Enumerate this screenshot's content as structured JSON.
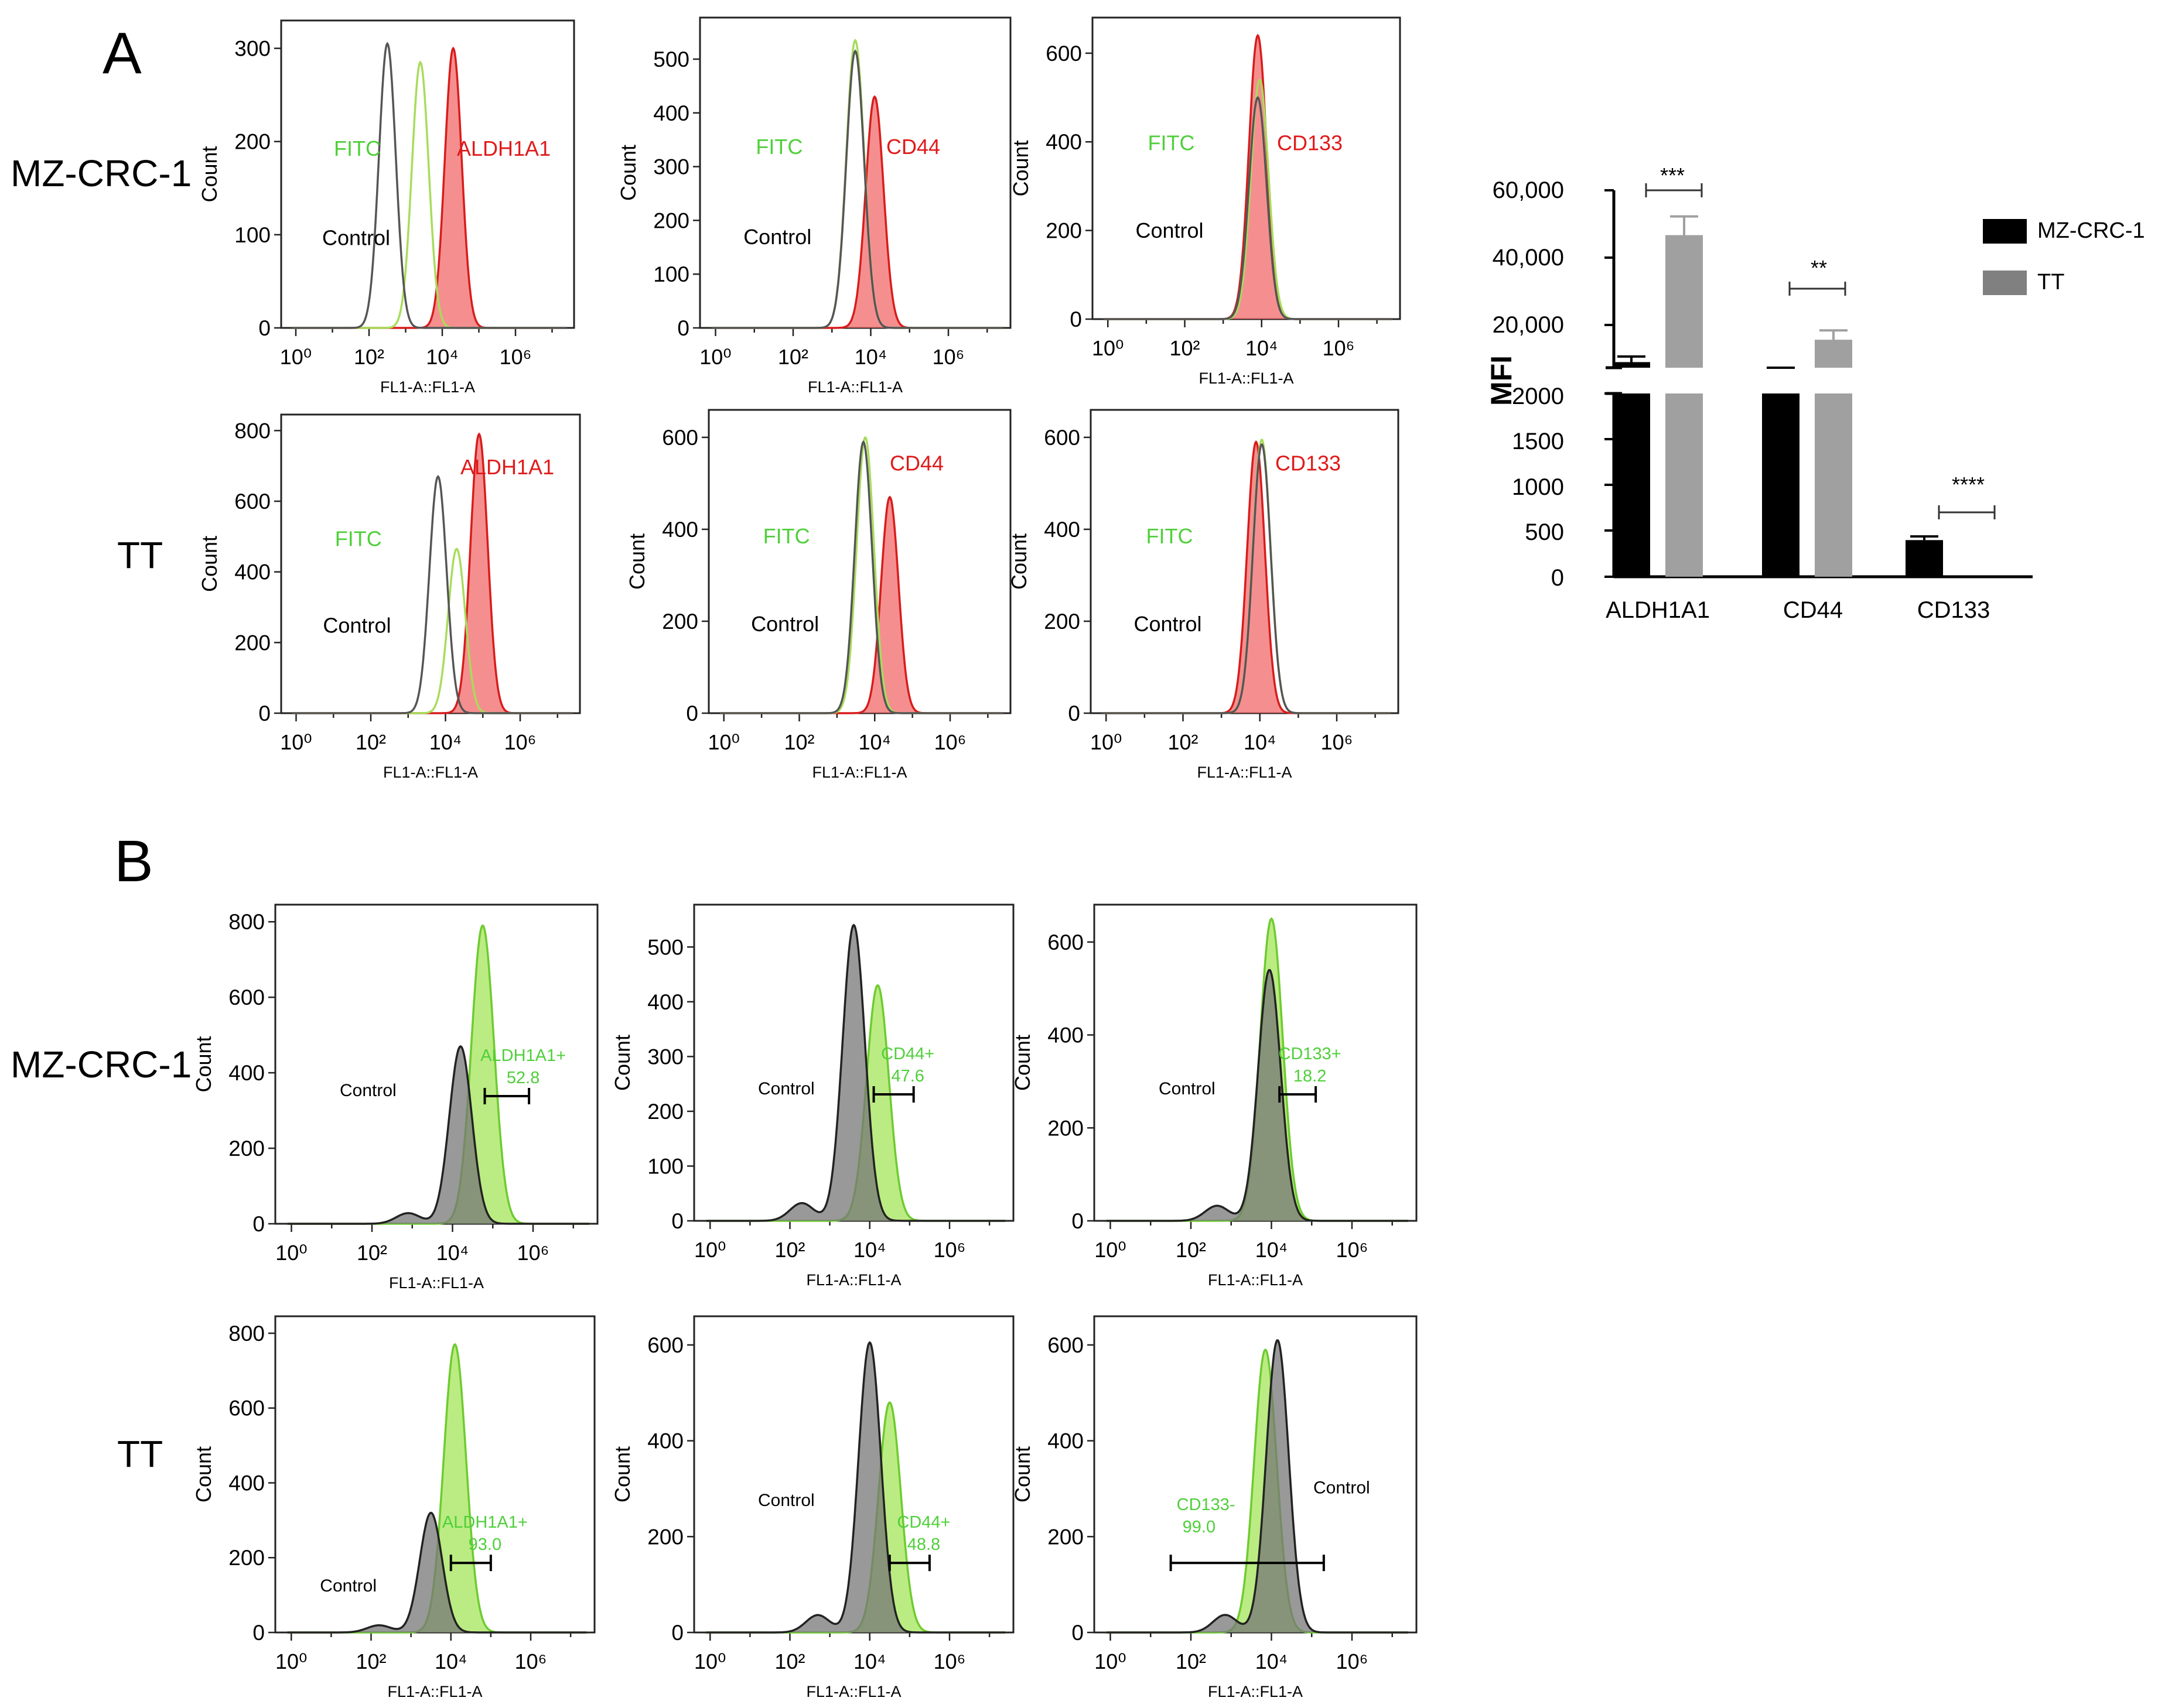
{
  "colors": {
    "axis": "#222222",
    "control_line": "#555555",
    "control_fill": "#777777",
    "fitc_line": "#a8dc5c",
    "fitc_fill": "#a4e55a",
    "marker_line": "#d81c1c",
    "marker_fill": "#f26a6a",
    "label_green": "#4fcf3a",
    "label_red": "#e01a1a",
    "bar_mzcrc1": "#000000",
    "bar_tt": "#a0a0a0"
  },
  "panel_labels": {
    "a": "A",
    "b": "B"
  },
  "rows": {
    "a_top": "MZ-CRC-1",
    "a_bottom": "TT",
    "b_top": "MZ-CRC-1",
    "b_bottom": "TT"
  },
  "hist_common": {
    "ylabel": "Count",
    "xlabel": "FL1-A::FL1-A",
    "x_scale": "log",
    "x_ticks": [
      "10^0",
      "10^2",
      "10^4",
      "10^6"
    ],
    "control_label": "Control",
    "fitc_label": "FITC"
  },
  "chart_data": [
    {
      "id": "A1",
      "type": "area",
      "panel": "A",
      "row": "MZ-CRC-1",
      "marker": "ALDH1A1",
      "ylim": [
        0,
        320
      ],
      "yticks": [
        0,
        100,
        200,
        300
      ],
      "series": [
        {
          "name": "Control",
          "peak_log10": 2.5,
          "peak_count": 305
        },
        {
          "name": "FITC",
          "peak_log10": 3.4,
          "peak_count": 285
        },
        {
          "name": "ALDH1A1",
          "peak_log10": 4.3,
          "peak_count": 300
        }
      ]
    },
    {
      "id": "A2",
      "type": "area",
      "panel": "A",
      "row": "MZ-CRC-1",
      "marker": "CD44",
      "ylim": [
        0,
        560
      ],
      "yticks": [
        0,
        100,
        200,
        300,
        400,
        500
      ],
      "series": [
        {
          "name": "Control",
          "peak_log10": 3.6,
          "peak_count": 515
        },
        {
          "name": "FITC",
          "peak_log10": 3.6,
          "peak_count": 535
        },
        {
          "name": "CD44",
          "peak_log10": 4.1,
          "peak_count": 430
        }
      ]
    },
    {
      "id": "A3",
      "type": "area",
      "panel": "A",
      "row": "MZ-CRC-1",
      "marker": "CD133",
      "ylim": [
        0,
        660
      ],
      "yticks": [
        0,
        200,
        400,
        600
      ],
      "series": [
        {
          "name": "Control",
          "peak_log10": 3.9,
          "peak_count": 500
        },
        {
          "name": "FITC",
          "peak_log10": 3.95,
          "peak_count": 540
        },
        {
          "name": "CD133",
          "peak_log10": 3.9,
          "peak_count": 640
        }
      ]
    },
    {
      "id": "A4",
      "type": "area",
      "panel": "A",
      "row": "TT",
      "marker": "ALDH1A1",
      "ylim": [
        0,
        820
      ],
      "yticks": [
        0,
        200,
        400,
        600,
        800
      ],
      "series": [
        {
          "name": "Control",
          "peak_log10": 3.8,
          "peak_count": 670
        },
        {
          "name": "FITC",
          "peak_log10": 4.3,
          "peak_count": 465
        },
        {
          "name": "ALDH1A1",
          "peak_log10": 4.9,
          "peak_count": 790
        }
      ]
    },
    {
      "id": "A5",
      "type": "area",
      "panel": "A",
      "row": "TT",
      "marker": "CD44",
      "ylim": [
        0,
        640
      ],
      "yticks": [
        0,
        200,
        400,
        600
      ],
      "series": [
        {
          "name": "Control",
          "peak_log10": 3.7,
          "peak_count": 590
        },
        {
          "name": "FITC",
          "peak_log10": 3.75,
          "peak_count": 600
        },
        {
          "name": "CD44",
          "peak_log10": 4.4,
          "peak_count": 470
        }
      ]
    },
    {
      "id": "A6",
      "type": "area",
      "panel": "A",
      "row": "TT",
      "marker": "CD133",
      "ylim": [
        0,
        640
      ],
      "yticks": [
        0,
        200,
        400,
        600
      ],
      "series": [
        {
          "name": "Control",
          "peak_log10": 4.05,
          "peak_count": 585
        },
        {
          "name": "FITC",
          "peak_log10": 4.05,
          "peak_count": 595
        },
        {
          "name": "CD133",
          "peak_log10": 3.9,
          "peak_count": 590
        }
      ]
    },
    {
      "id": "B1",
      "type": "area",
      "panel": "B",
      "row": "MZ-CRC-1",
      "gate_label": "ALDH1A1+",
      "gate_value": "52.8",
      "gate_range_log10": [
        4.8,
        5.9
      ],
      "ylim": [
        0,
        820
      ],
      "yticks": [
        0,
        200,
        400,
        600,
        800
      ],
      "series": [
        {
          "name": "Control",
          "peak_log10": 4.2,
          "peak_count": 470
        },
        {
          "name": "ALDH1A1+",
          "peak_log10": 4.75,
          "peak_count": 790
        }
      ]
    },
    {
      "id": "B2",
      "type": "area",
      "panel": "B",
      "row": "MZ-CRC-1",
      "gate_label": "CD44+",
      "gate_value": "47.6",
      "gate_range_log10": [
        4.1,
        5.1
      ],
      "ylim": [
        0,
        560
      ],
      "yticks": [
        0,
        100,
        200,
        300,
        400,
        500
      ],
      "series": [
        {
          "name": "Control",
          "peak_log10": 3.6,
          "peak_count": 540
        },
        {
          "name": "CD44+",
          "peak_log10": 4.2,
          "peak_count": 430
        }
      ]
    },
    {
      "id": "B3",
      "type": "area",
      "panel": "B",
      "row": "MZ-CRC-1",
      "gate_label": "CD133+",
      "gate_value": "18.2",
      "gate_range_log10": [
        4.2,
        5.1
      ],
      "ylim": [
        0,
        660
      ],
      "yticks": [
        0,
        200,
        400,
        600
      ],
      "series": [
        {
          "name": "Control",
          "peak_log10": 3.95,
          "peak_count": 540
        },
        {
          "name": "CD133+",
          "peak_log10": 4.0,
          "peak_count": 650
        }
      ]
    },
    {
      "id": "B4",
      "type": "area",
      "panel": "B",
      "row": "TT",
      "gate_label": "ALDH1A1+",
      "gate_value": "93.0",
      "gate_range_log10": [
        4.0,
        5.0
      ],
      "ylim": [
        0,
        820
      ],
      "yticks": [
        0,
        200,
        400,
        600,
        800
      ],
      "series": [
        {
          "name": "Control",
          "peak_log10": 3.5,
          "peak_count": 320
        },
        {
          "name": "ALDH1A1+",
          "peak_log10": 4.1,
          "peak_count": 770
        }
      ]
    },
    {
      "id": "B5",
      "type": "area",
      "panel": "B",
      "row": "TT",
      "gate_label": "CD44+",
      "gate_value": "48.8",
      "gate_range_log10": [
        4.5,
        5.5
      ],
      "ylim": [
        0,
        640
      ],
      "yticks": [
        0,
        200,
        400,
        600
      ],
      "series": [
        {
          "name": "Control",
          "peak_log10": 4.0,
          "peak_count": 605
        },
        {
          "name": "CD44+",
          "peak_log10": 4.5,
          "peak_count": 480
        }
      ]
    },
    {
      "id": "B6",
      "type": "area",
      "panel": "B",
      "row": "TT",
      "gate_label": "CD133-",
      "gate_value": "99.0",
      "gate_range_log10": [
        1.5,
        5.3
      ],
      "ylim": [
        0,
        640
      ],
      "yticks": [
        0,
        200,
        400,
        600
      ],
      "series": [
        {
          "name": "Control",
          "peak_log10": 4.15,
          "peak_count": 610
        },
        {
          "name": "CD133-",
          "peak_log10": 3.85,
          "peak_count": 590
        }
      ]
    },
    {
      "id": "MFI",
      "type": "bar",
      "panel": "A",
      "ylabel": "MFI",
      "y_axis": "broken",
      "y_ticks_lower": [
        "0",
        "500",
        "1000",
        "1500",
        "2000"
      ],
      "y_ticks_upper": [
        "20,000",
        "40,000",
        "60,000"
      ],
      "categories": [
        "ALDH1A1",
        "CD44",
        "CD133"
      ],
      "series": [
        {
          "name": "MZ-CRC-1",
          "values": [
            14000,
            10500,
            400
          ],
          "errors": [
            1500,
            1500,
            40
          ]
        },
        {
          "name": "TT",
          "values": [
            48000,
            20000,
            0
          ],
          "errors": [
            5000,
            2500,
            0
          ]
        }
      ],
      "significance": [
        "***",
        "**",
        "****"
      ],
      "legend_position": "top-right"
    }
  ]
}
